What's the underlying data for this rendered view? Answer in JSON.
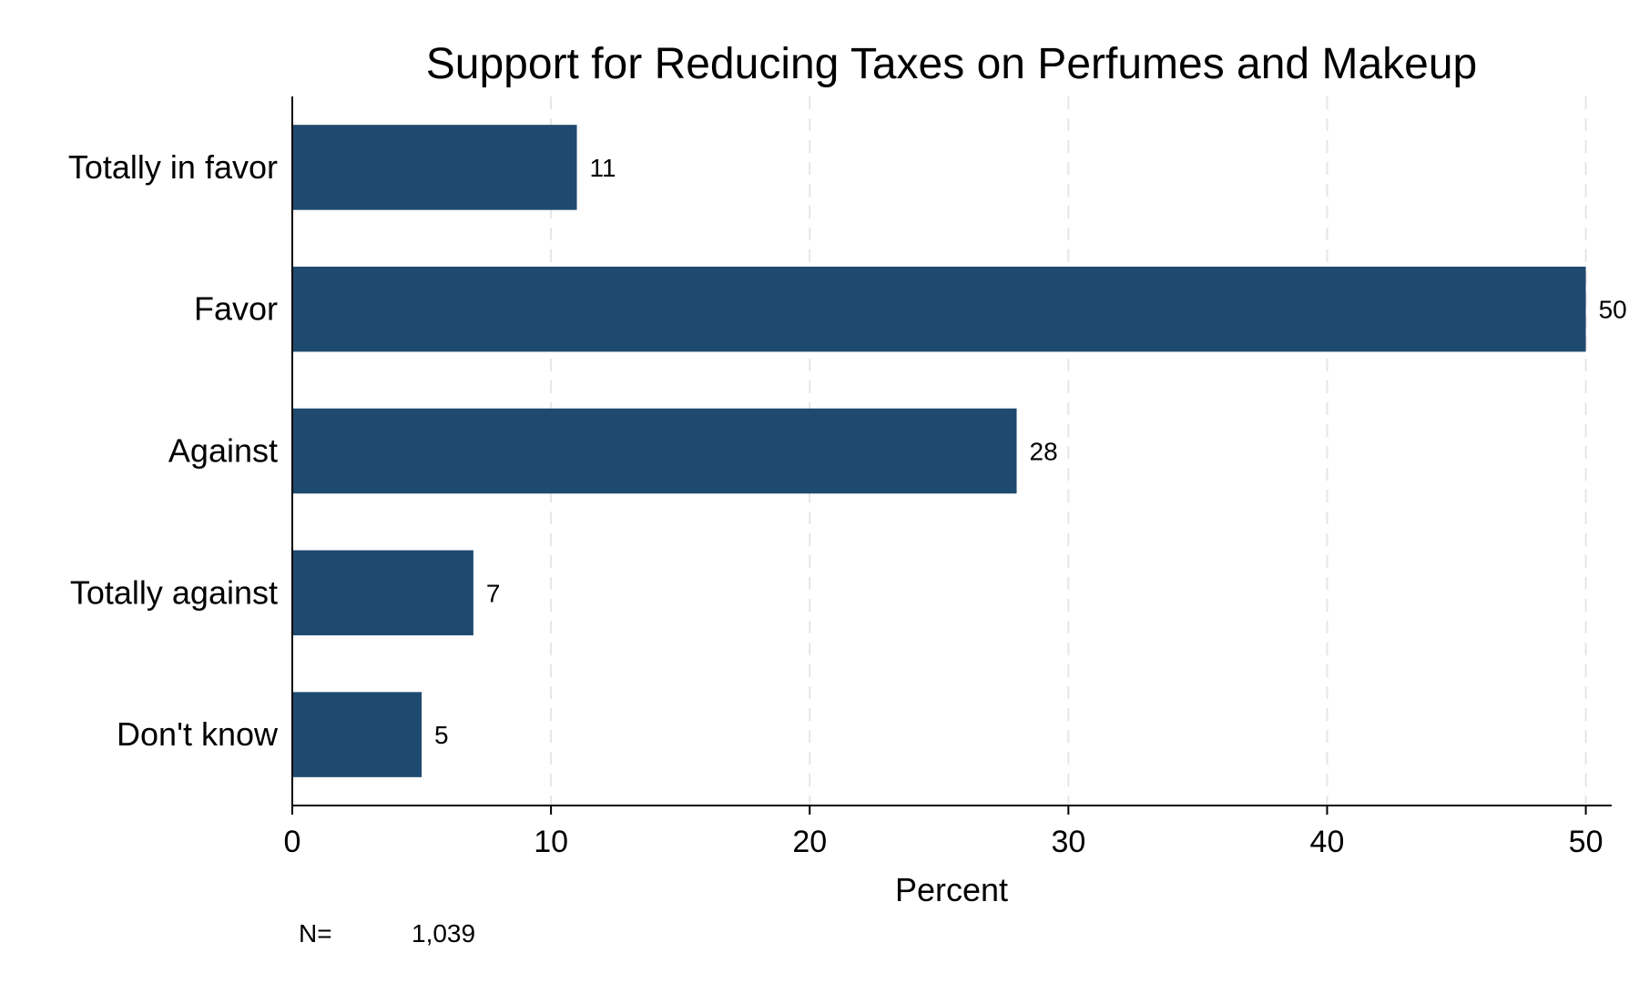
{
  "chart_data": {
    "type": "bar",
    "orientation": "horizontal",
    "title": "Support for Reducing Taxes on Perfumes and Makeup",
    "xlabel": "Percent",
    "ylabel": "",
    "categories": [
      "Totally in favor",
      "Favor",
      "Against",
      "Totally against",
      "Don't know"
    ],
    "values": [
      11,
      50,
      28,
      7,
      5
    ],
    "data_labels": [
      "11",
      "50",
      "28",
      "7",
      "5"
    ],
    "xlim": [
      0,
      51
    ],
    "xticks": [
      0,
      10,
      20,
      30,
      40,
      50
    ],
    "grid": "vertical dashed",
    "legend": "none",
    "bar_color": "#1f4a70"
  },
  "note": {
    "label": "N=",
    "value": "1,039"
  }
}
